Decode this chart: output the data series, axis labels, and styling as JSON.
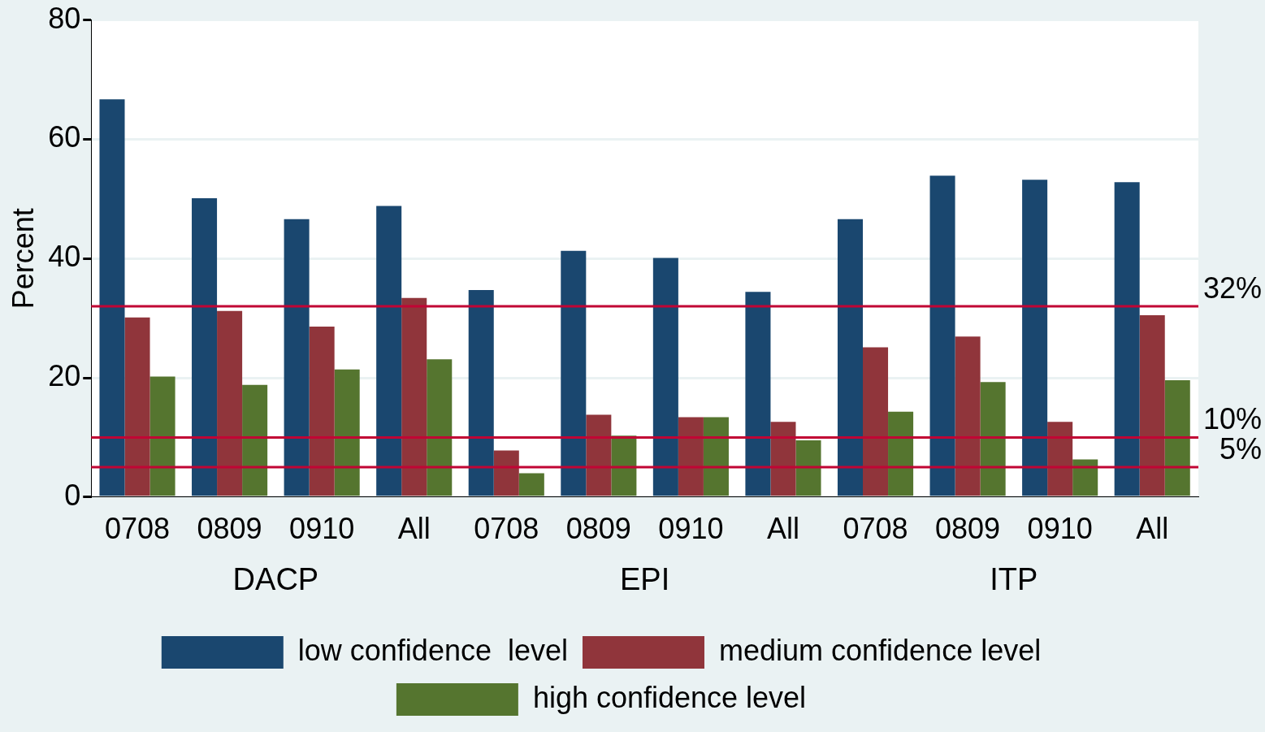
{
  "chart_data": {
    "type": "bar",
    "ylabel": "Percent",
    "categories": [
      "0708",
      "0809",
      "0910",
      "All",
      "0708",
      "0809",
      "0910",
      "All",
      "0708",
      "0809",
      "0910",
      "All"
    ],
    "series": [
      {
        "name": "low confidence  level",
        "color": "#1a476f",
        "values": [
          66.7,
          50.1,
          46.6,
          48.8,
          34.7,
          41.3,
          40.1,
          34.4,
          46.6,
          53.9,
          53.2,
          52.8
        ]
      },
      {
        "name": "medium confidence level",
        "color": "#90353b",
        "values": [
          30.1,
          31.2,
          28.6,
          33.4,
          7.8,
          13.8,
          13.4,
          12.6,
          25.1,
          26.9,
          12.6,
          30.5
        ]
      },
      {
        "name": "high confidence level",
        "color": "#55752f",
        "values": [
          20.2,
          18.8,
          21.4,
          23.1,
          4.0,
          10.3,
          13.4,
          9.5,
          14.3,
          19.3,
          6.3,
          19.6
        ]
      }
    ],
    "ylim": [
      0,
      80
    ],
    "yticks": [
      0,
      20,
      40,
      60,
      80
    ],
    "grid": "y",
    "legend": "bottom",
    "ref_lines": [
      {
        "axis": "y",
        "value": 32,
        "label": "32%",
        "color": "#c10534"
      },
      {
        "axis": "y",
        "value": 10,
        "label": "10%",
        "color": "#c10534"
      },
      {
        "axis": "y",
        "value": 5,
        "label": "5%",
        "color": "#c10534"
      }
    ],
    "annotations": [
      "DACP",
      "EPI",
      "ITP"
    ]
  }
}
